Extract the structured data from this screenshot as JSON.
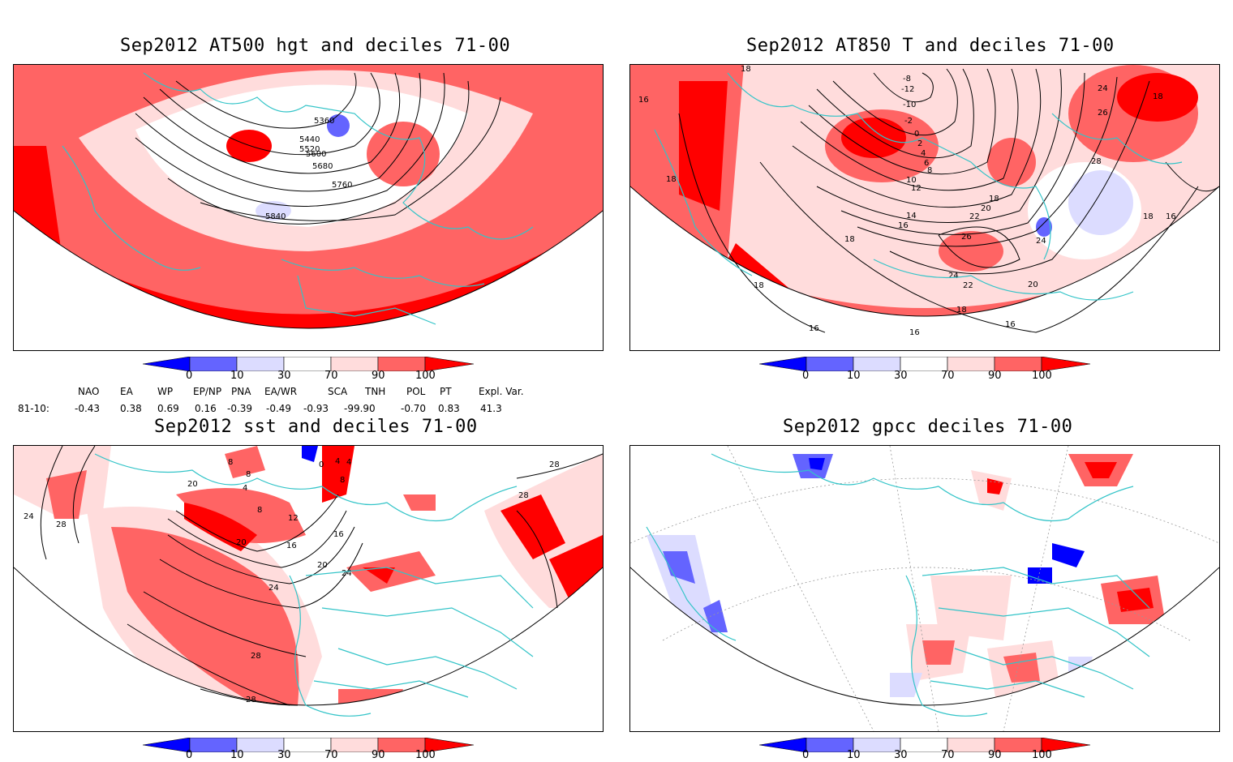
{
  "colors": {
    "d0_10_dark": "#0000ff",
    "d10": "#6464ff",
    "d10_30": "#dcdcff",
    "d70_90": "#ffdcdc",
    "d90_100": "#ff6464",
    "d100": "#ff0000",
    "coast": "#33c4c8",
    "contour": "#000000"
  },
  "panels": {
    "p1": {
      "title": "Sep2012 AT500 hgt and deciles 71-00",
      "contour_labels": [
        "5360",
        "5440",
        "5520",
        "5600",
        "5680",
        "5760",
        "5840"
      ]
    },
    "p2": {
      "title": "Sep2012 AT850 T and deciles 71-00",
      "contour_labels": [
        "18",
        "16",
        "-8",
        "-12",
        "-10",
        "-2",
        "0",
        "2",
        "4",
        "6",
        "8",
        "10",
        "12",
        "14",
        "16",
        "18",
        "20",
        "22",
        "24",
        "26",
        "28",
        "18",
        "18",
        "18",
        "16",
        "18",
        "24",
        "22",
        "20",
        "16",
        "16",
        "18",
        "24",
        "18",
        "26",
        "16"
      ]
    },
    "p3": {
      "title": "Sep2012 sst and deciles 71-00",
      "contour_labels": [
        "24",
        "28",
        "20",
        "4",
        "8",
        "0",
        "4",
        "8",
        "8",
        "12",
        "16",
        "20",
        "16",
        "20",
        "24",
        "24",
        "28",
        "28",
        "28",
        "28",
        "8",
        "4"
      ]
    },
    "p4": {
      "title": "Sep2012 gpcc deciles 71-00"
    }
  },
  "colorbar": {
    "ticks": [
      "0",
      "10",
      "30",
      "70",
      "90",
      "100"
    ]
  },
  "indices": {
    "headers": [
      "NAO",
      "EA",
      "WP",
      "EP/NP",
      "PNA",
      "EA/WR",
      "SCA",
      "TNH",
      "POL",
      "PT",
      "Expl. Var."
    ],
    "row_label": "81-10:",
    "values": [
      "-0.43",
      "0.38",
      "0.69",
      "0.16",
      "-0.39",
      "-0.49",
      "-0.93",
      "-99.90",
      "-0.70",
      "0.83",
      "41.3"
    ]
  }
}
